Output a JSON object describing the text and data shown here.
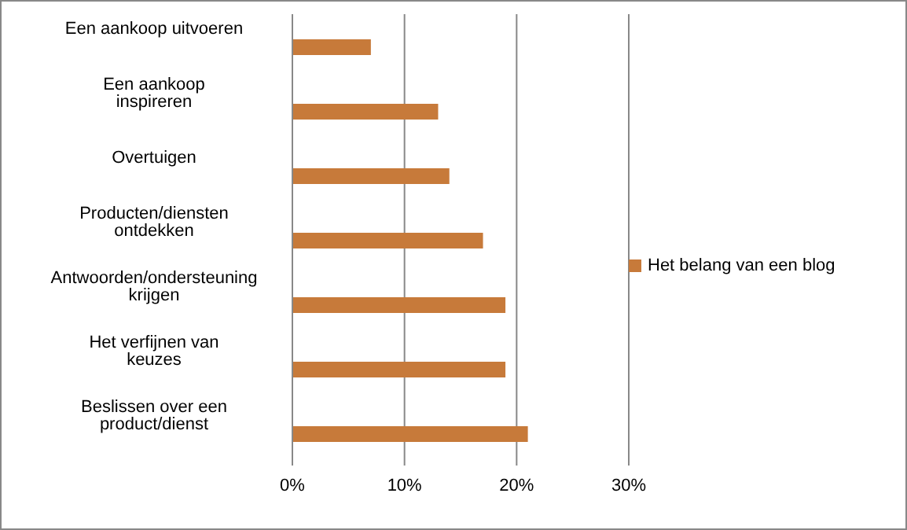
{
  "chart_data": {
    "type": "bar",
    "orientation": "horizontal",
    "categories": [
      "Een aankoop uitvoeren",
      "Een aankoop inspireren",
      "Overtuigen",
      "Producten/diensten ontdekken",
      "Antwoorden/ondersteuning krijgen",
      "Het verfijnen van keuzes",
      "Beslissen over een product/dienst"
    ],
    "series": [
      {
        "name": "Het belang van een blog",
        "color": "#c77a3a",
        "values": [
          7,
          13,
          14,
          17,
          19,
          19,
          21
        ]
      }
    ],
    "xlim": [
      0,
      30
    ],
    "xticks": [
      {
        "value": 0,
        "label": "0%"
      },
      {
        "value": 10,
        "label": "10%"
      },
      {
        "value": 20,
        "label": "20%"
      },
      {
        "value": 30,
        "label": "30%"
      }
    ],
    "grid": "x",
    "legend": "right"
  }
}
